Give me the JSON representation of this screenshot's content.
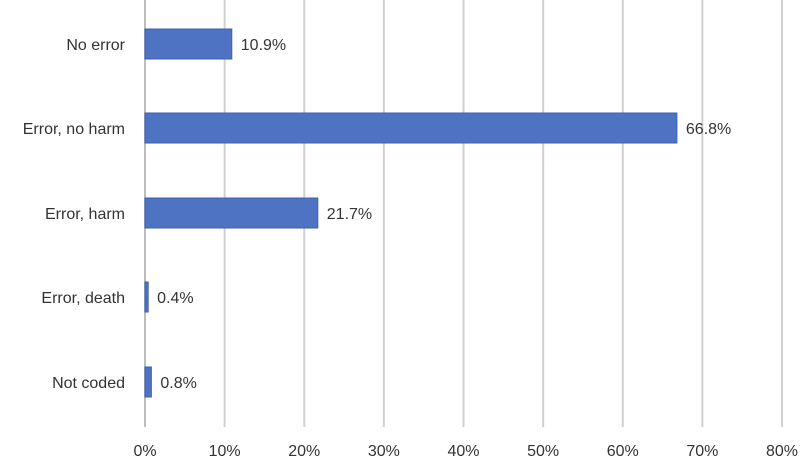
{
  "chart_data": {
    "type": "bar",
    "orientation": "horizontal",
    "categories": [
      "No error",
      "Error, no harm",
      "Error, harm",
      "Error, death",
      "Not coded"
    ],
    "values": [
      10.9,
      66.8,
      21.7,
      0.4,
      0.8
    ],
    "data_labels": [
      "10.9%",
      "66.8%",
      "21.7%",
      "0.4%",
      "0.8%"
    ],
    "x_ticks": [
      "0%",
      "10%",
      "20%",
      "30%",
      "40%",
      "50%",
      "60%",
      "70%",
      "80%"
    ],
    "xlim": [
      0,
      80
    ],
    "grid": "vertical",
    "legend": "none",
    "title": "",
    "xlabel": "",
    "ylabel": ""
  },
  "colors": {
    "bar": "#4f73c3",
    "bar_stroke": "#3f62ad",
    "grid": "#d0d0d0",
    "text": "#333333"
  }
}
